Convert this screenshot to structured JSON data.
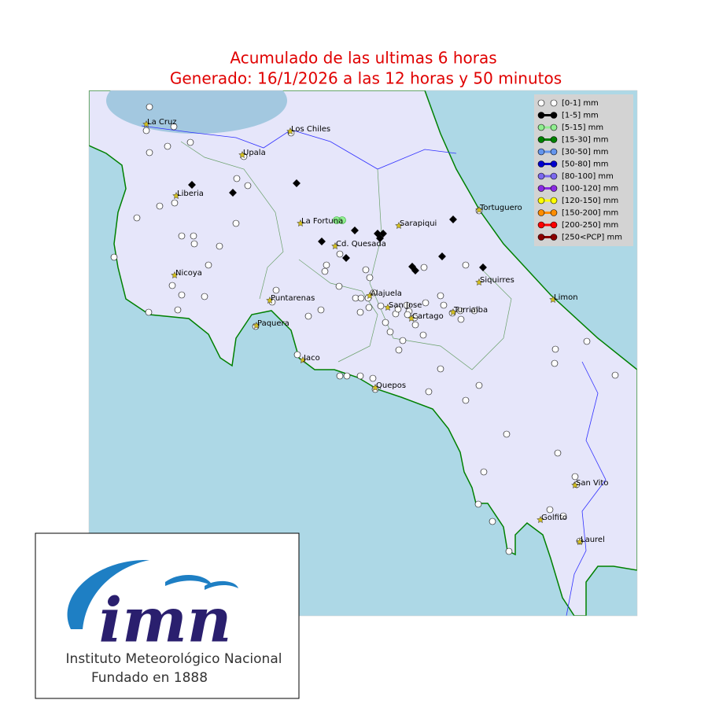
{
  "header": {
    "title": "Acumulado de las ultimas 6 horas",
    "subtitle": "Generado:  16/1/2026 a las 12 horas y 50 minutos"
  },
  "legend": {
    "entries": [
      {
        "label": "[0-1] mm",
        "color": "#ffffff"
      },
      {
        "label": "[1-5] mm",
        "color": "#000000"
      },
      {
        "label": "[5-15] mm",
        "color": "#90ee90"
      },
      {
        "label": "[15-30] mm",
        "color": "#008000"
      },
      {
        "label": "[30-50] mm",
        "color": "#6495ed"
      },
      {
        "label": "[50-80] mm",
        "color": "#0000cd"
      },
      {
        "label": "[80-100] mm",
        "color": "#7b68ee"
      },
      {
        "label": "[100-120] mm",
        "color": "#8a2be2"
      },
      {
        "label": "[120-150] mm",
        "color": "#ffff00"
      },
      {
        "label": "[150-200] mm",
        "color": "#ff8c00"
      },
      {
        "label": "[200-250] mm",
        "color": "#ff0000"
      },
      {
        "label": "[250<PCP] mm",
        "color": "#8b0000"
      }
    ]
  },
  "cities": [
    "La Cruz",
    "Los Chiles",
    "Upala",
    "Liberia",
    "La Fortuna",
    "Sarapiqui",
    "Tortuguero",
    "Cd. Quesada",
    "Nicoya",
    "Siquirres",
    "Alajuela",
    "Puntarenas",
    "Limon",
    "San Jose",
    "Turrialba",
    "Cartago",
    "Paquera",
    "Jaco",
    "Quepos",
    "San Vito",
    "Golfito",
    "Laurel"
  ],
  "logo": {
    "mark": "imn",
    "name": "Instituto Meteorológico Nacional",
    "founded": "Fundado en 1888"
  }
}
